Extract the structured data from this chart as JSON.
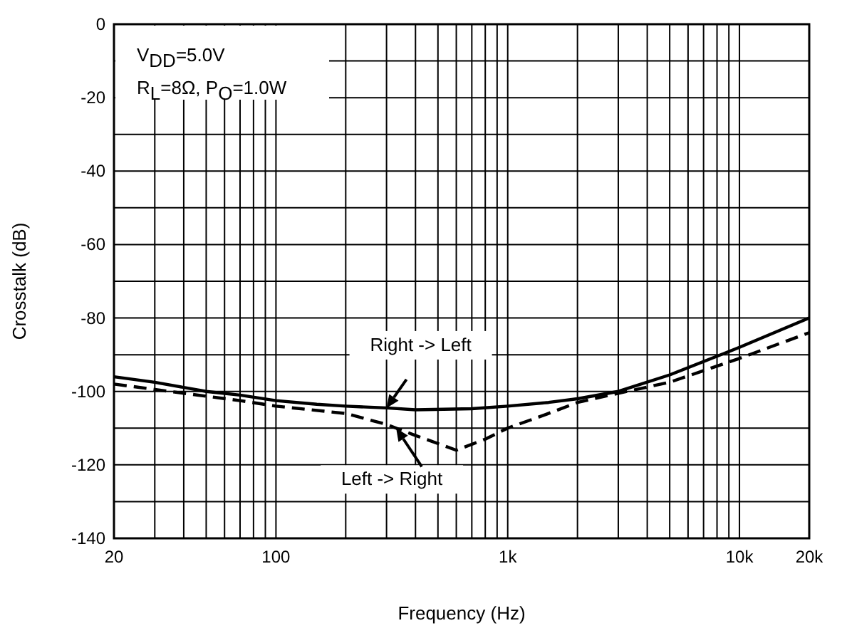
{
  "chart_data": {
    "type": "line",
    "xlabel": "Frequency (Hz)",
    "ylabel": "Crosstalk (dB)",
    "log": "x",
    "grid": true,
    "xlim": [
      20,
      20000
    ],
    "xticks": [
      20,
      {
        "value": 30,
        "label": null
      },
      {
        "value": 40,
        "label": null
      },
      {
        "value": 50,
        "label": null
      },
      {
        "value": 60,
        "label": null
      },
      {
        "value": 70,
        "label": null
      },
      {
        "value": 80,
        "label": null
      },
      {
        "value": 90,
        "label": null
      },
      100,
      {
        "value": 200,
        "label": null
      },
      {
        "value": 300,
        "label": null
      },
      {
        "value": 400,
        "label": null
      },
      {
        "value": 500,
        "label": null
      },
      {
        "value": 600,
        "label": null
      },
      {
        "value": 700,
        "label": null
      },
      {
        "value": 800,
        "label": null
      },
      {
        "value": 900,
        "label": null
      },
      {
        "value": 1000,
        "label": "1k"
      },
      {
        "value": 2000,
        "label": null
      },
      {
        "value": 3000,
        "label": null
      },
      {
        "value": 4000,
        "label": null
      },
      {
        "value": 5000,
        "label": null
      },
      {
        "value": 6000,
        "label": null
      },
      {
        "value": 7000,
        "label": null
      },
      {
        "value": 8000,
        "label": null
      },
      {
        "value": 9000,
        "label": null
      },
      {
        "value": 10000,
        "label": "10k"
      },
      {
        "value": 20000,
        "label": "20k"
      }
    ],
    "ylim": [
      -140,
      0
    ],
    "yticks": [
      -140,
      {
        "value": -130,
        "label": null
      },
      -120,
      {
        "value": -110,
        "label": null
      },
      -100,
      {
        "value": -90,
        "label": null
      },
      -80,
      {
        "value": -70,
        "label": null
      },
      -60,
      {
        "value": -50,
        "label": null
      },
      -40,
      {
        "value": -30,
        "label": null
      },
      -20,
      {
        "value": -10,
        "label": null
      },
      0
    ],
    "annotations": [
      "V$_{DD}$=5.0V",
      "R$_{L}$=8Ω, P$_{O}$=1.0W",
      {
        "text": "Right -> Left",
        "x": 300,
        "y": -104.5
      },
      {
        "text": "Left -> Right",
        "x": 330,
        "y": -110
      }
    ],
    "series": [
      {
        "color": "#000000",
        "line_style": "solid",
        "x": [
          20,
          30,
          50,
          70,
          100,
          150,
          200,
          300,
          400,
          700,
          1000,
          1500,
          2000,
          3000,
          5000,
          10000,
          20000
        ],
        "values": [
          -96,
          -97.5,
          -100,
          -101,
          -102.5,
          -103.5,
          -104,
          -104.5,
          -105,
          -104.7,
          -104,
          -103,
          -102,
          -100,
          -95.5,
          -88,
          -80
        ]
      },
      {
        "color": "#000000",
        "line_style": "dashed",
        "x": [
          20,
          40,
          70,
          100,
          200,
          300,
          400,
          600,
          800,
          1000,
          1500,
          2000,
          3000,
          5000,
          10000,
          20000
        ],
        "values": [
          -98,
          -100.5,
          -102.5,
          -104,
          -106,
          -109,
          -112,
          -116,
          -113,
          -110,
          -106,
          -103,
          -100.5,
          -97.5,
          -91,
          -84
        ]
      }
    ]
  }
}
